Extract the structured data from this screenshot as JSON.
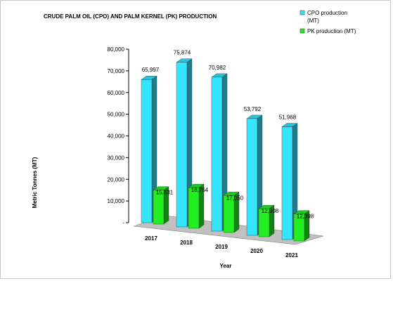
{
  "chart_data": {
    "type": "bar",
    "title": "CRUDE PALM OIL (CPO) AND PALM KERNEL (PK) PRODUCTION",
    "xlabel": "Year",
    "ylabel": "Metric Tonnes (MT)",
    "categories": [
      "2017",
      "2018",
      "2019",
      "2020",
      "2021"
    ],
    "series": [
      {
        "name": "CPO production (MT)",
        "color": "#33e5ff",
        "values": [
          65997,
          75874,
          70982,
          53792,
          51968
        ],
        "labels": [
          "65,997",
          "75,874",
          "70,982",
          "53,792",
          "51,968"
        ]
      },
      {
        "name": "PK production (MT)",
        "color": "#22ee22",
        "values": [
          15631,
          18754,
          17050,
          12908,
          12398
        ],
        "labels": [
          "15,631",
          "18,754",
          "17,050",
          "12,908",
          "12,398"
        ]
      }
    ],
    "ylim": [
      0,
      80000
    ],
    "yticks": [
      {
        "value": 0,
        "label": "-"
      },
      {
        "value": 10000,
        "label": "10,000"
      },
      {
        "value": 20000,
        "label": "20,000"
      },
      {
        "value": 30000,
        "label": "30,000"
      },
      {
        "value": 40000,
        "label": "40,000"
      },
      {
        "value": 50000,
        "label": "50,000"
      },
      {
        "value": 60000,
        "label": "60,000"
      },
      {
        "value": 70000,
        "label": "70,000"
      },
      {
        "value": 80000,
        "label": "80,000"
      }
    ],
    "legend_position": "top-right",
    "grid": false,
    "style": "3d-clustered-column"
  }
}
